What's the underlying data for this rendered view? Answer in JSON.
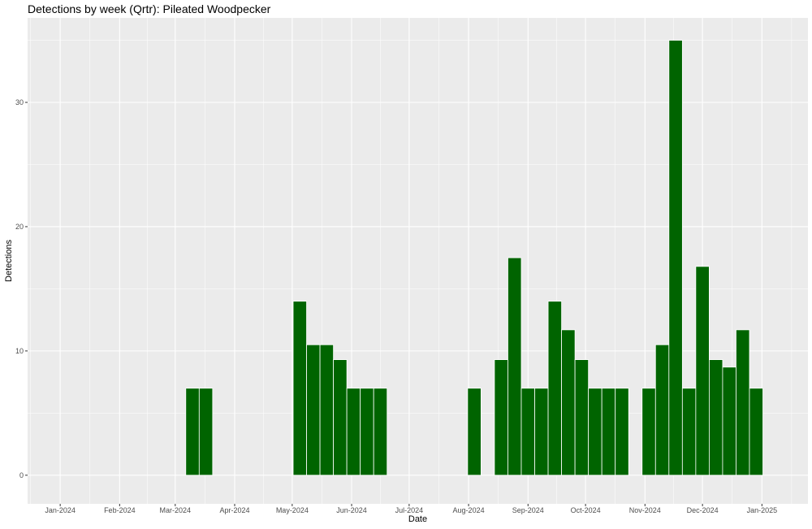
{
  "chart_data": {
    "type": "bar",
    "title": "Detections by week (Qrtr): Pileated Woodpecker",
    "xlabel": "Date",
    "ylabel": "Detections",
    "x_type": "date",
    "ylim": [
      -2.3,
      36.8
    ],
    "xlim": [
      "2023-12-15",
      "2025-01-25"
    ],
    "y_ticks": [
      0,
      10,
      20,
      30
    ],
    "x_ticks": [
      {
        "date": "2024-01-01",
        "label": "Jan-2024"
      },
      {
        "date": "2024-02-01",
        "label": "Feb-2024"
      },
      {
        "date": "2024-03-01",
        "label": "Mar-2024"
      },
      {
        "date": "2024-04-01",
        "label": "Apr-2024"
      },
      {
        "date": "2024-05-01",
        "label": "May-2024"
      },
      {
        "date": "2024-06-01",
        "label": "Jun-2024"
      },
      {
        "date": "2024-07-01",
        "label": "Jul-2024"
      },
      {
        "date": "2024-08-01",
        "label": "Aug-2024"
      },
      {
        "date": "2024-09-01",
        "label": "Sep-2024"
      },
      {
        "date": "2024-10-01",
        "label": "Oct-2024"
      },
      {
        "date": "2024-11-01",
        "label": "Nov-2024"
      },
      {
        "date": "2024-12-01",
        "label": "Dec-2024"
      },
      {
        "date": "2025-01-01",
        "label": "Jan-2025"
      }
    ],
    "grid": true,
    "bar_color": "#006400",
    "panel_color": "#ebebeb",
    "gridline_color": "#ffffff",
    "data": [
      {
        "date": "2024-03-10",
        "value": 7
      },
      {
        "date": "2024-03-17",
        "value": 7
      },
      {
        "date": "2024-05-05",
        "value": 14
      },
      {
        "date": "2024-05-12",
        "value": 10.5
      },
      {
        "date": "2024-05-19",
        "value": 10.5
      },
      {
        "date": "2024-05-26",
        "value": 9.3
      },
      {
        "date": "2024-06-02",
        "value": 7
      },
      {
        "date": "2024-06-09",
        "value": 7
      },
      {
        "date": "2024-06-16",
        "value": 7
      },
      {
        "date": "2024-08-04",
        "value": 7
      },
      {
        "date": "2024-08-18",
        "value": 9.3
      },
      {
        "date": "2024-08-25",
        "value": 17.5
      },
      {
        "date": "2024-09-01",
        "value": 7
      },
      {
        "date": "2024-09-08",
        "value": 7
      },
      {
        "date": "2024-09-15",
        "value": 14
      },
      {
        "date": "2024-09-22",
        "value": 11.7
      },
      {
        "date": "2024-09-29",
        "value": 9.3
      },
      {
        "date": "2024-10-06",
        "value": 7
      },
      {
        "date": "2024-10-13",
        "value": 7
      },
      {
        "date": "2024-10-20",
        "value": 7
      },
      {
        "date": "2024-11-03",
        "value": 7
      },
      {
        "date": "2024-11-10",
        "value": 10.5
      },
      {
        "date": "2024-11-17",
        "value": 35
      },
      {
        "date": "2024-11-24",
        "value": 7
      },
      {
        "date": "2024-12-01",
        "value": 16.8
      },
      {
        "date": "2024-12-08",
        "value": 9.3
      },
      {
        "date": "2024-12-15",
        "value": 8.7
      },
      {
        "date": "2024-12-22",
        "value": 11.7
      },
      {
        "date": "2024-12-29",
        "value": 7
      }
    ]
  }
}
